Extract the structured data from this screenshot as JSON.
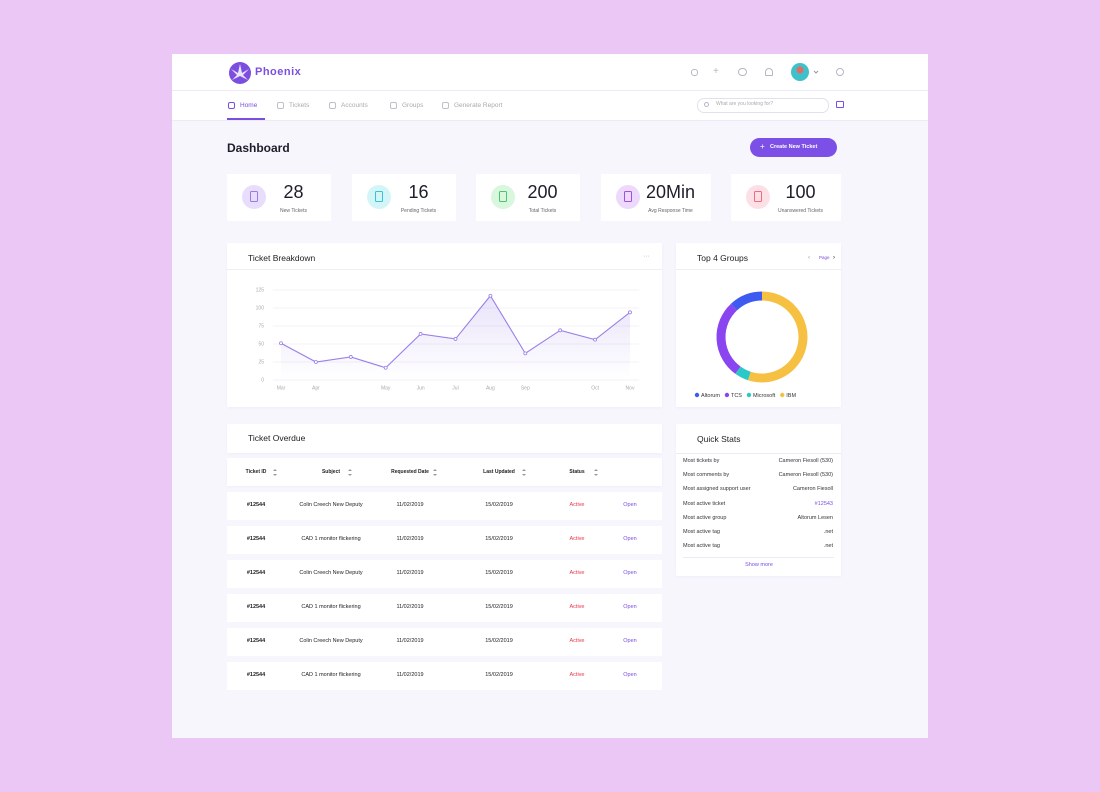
{
  "header": {
    "brand": "Phoenix"
  },
  "nav": {
    "items": [
      "Home",
      "Tickets",
      "Accounts",
      "Groups",
      "Generate Report"
    ],
    "search_placeholder": "What are you looking for?"
  },
  "dashboard": {
    "title": "Dashboard",
    "button": "Create New Ticket"
  },
  "stats": [
    {
      "value": "28",
      "label": "New Tickets",
      "color": "#9a7ae6",
      "bg": "#e8defc"
    },
    {
      "value": "16",
      "label": "Pending Tickets",
      "color": "#36c2d4",
      "bg": "#d4f5f8"
    },
    {
      "value": "200",
      "label": "Total Tickets",
      "color": "#4bc56a",
      "bg": "#d9f6df"
    },
    {
      "value": "20Min",
      "label": "Avg Response Time",
      "color": "#a24fdc",
      "bg": "#ecd9fb"
    },
    {
      "value": "100",
      "label": "Unanswered Tickets",
      "color": "#ef6b80",
      "bg": "#fde0e6"
    }
  ],
  "ticket_breakdown": {
    "title": "Ticket Breakdown",
    "chart_data": {
      "type": "line",
      "categories": [
        "Mar",
        "Apr",
        null,
        "May",
        "Jun",
        "Jul",
        "Aug",
        "Sep",
        null,
        "Oct",
        "Nov"
      ],
      "values": [
        51,
        25,
        32,
        17,
        64,
        57,
        117,
        37,
        69,
        56,
        94
      ],
      "color": "#9b7fe8",
      "ylim": [
        0,
        125
      ],
      "yticks": [
        0,
        25,
        50,
        75,
        100,
        125
      ],
      "grid": true
    }
  },
  "top_groups": {
    "title": "Top 4 Groups",
    "pager": "Page",
    "chart_data": {
      "type": "pie",
      "categories": [
        "Altorum",
        "TCS",
        "Microsoft",
        "IBM"
      ],
      "values": [
        12,
        28,
        5,
        55
      ],
      "colors": [
        "#3d5af1",
        "#8b45f0",
        "#2cc8c8",
        "#f6c143"
      ],
      "donut": true
    }
  },
  "ticket_overdue": {
    "title": "Ticket Overdue",
    "columns": [
      "Ticket ID",
      "Subject",
      "Requested Date",
      "Last Updated",
      "Status",
      null
    ],
    "rows": [
      [
        "#12544",
        "Colin Creech New Deputy",
        "11/02/2019",
        "15/02/2019",
        "Active",
        "Open"
      ],
      [
        "#12544",
        "CAD 1 monitor flickering",
        "11/02/2019",
        "15/02/2019",
        "Active",
        "Open"
      ],
      [
        "#12544",
        "Colin Creech New Deputy",
        "11/02/2019",
        "15/02/2019",
        "Active",
        "Open"
      ],
      [
        "#12544",
        "CAD 1 monitor flickering",
        "11/02/2019",
        "15/02/2019",
        "Active",
        "Open"
      ],
      [
        "#12544",
        "Colin Creech New Deputy",
        "11/02/2019",
        "15/02/2019",
        "Active",
        "Open"
      ],
      [
        "#12544",
        "CAD 1 monitor flickering",
        "11/02/2019",
        "15/02/2019",
        "Active",
        "Open"
      ]
    ]
  },
  "quick_stats": {
    "title": "Quick Stats",
    "rows": [
      [
        "Most tickets by",
        "Cameron Fiesoll (530)"
      ],
      [
        "Most comments by",
        "Cameron Fiesoll (530)"
      ],
      [
        "Most assigned support user",
        "Cameron Fiesoll"
      ],
      [
        "Most active ticket",
        "#12543"
      ],
      [
        "Most active group",
        "Altorum Lesen"
      ],
      [
        "Most active tag",
        ".net"
      ],
      [
        "Most active tag",
        ".net"
      ]
    ],
    "more": "Show more"
  }
}
